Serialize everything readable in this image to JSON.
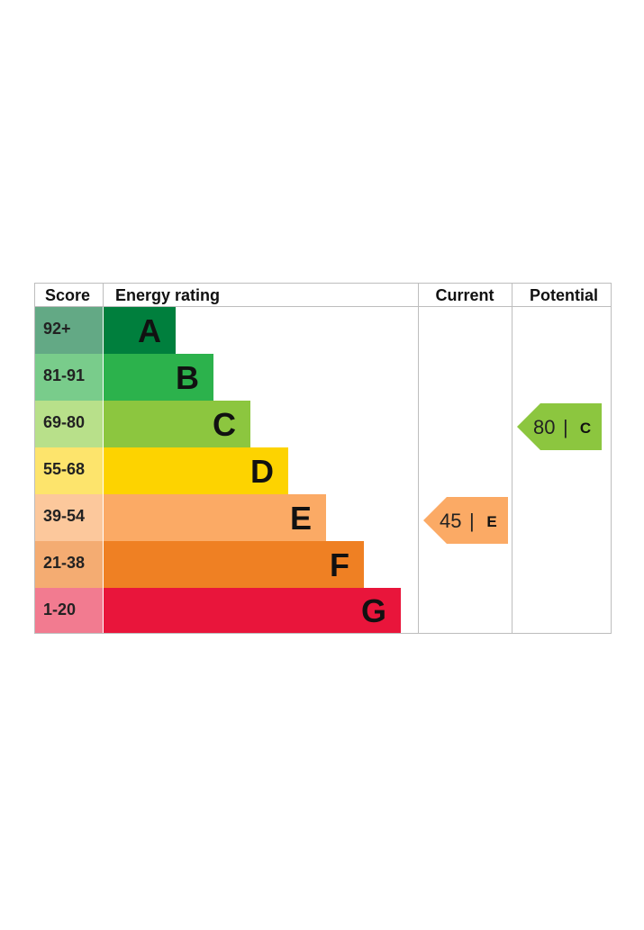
{
  "chart_data": {
    "type": "bar",
    "title": "",
    "headers": {
      "score": "Score",
      "rating": "Energy rating",
      "current": "Current",
      "potential": "Potential"
    },
    "bands": [
      {
        "letter": "A",
        "range": "92+",
        "color": "#007f3d",
        "score_color": "#63a985"
      },
      {
        "letter": "B",
        "range": "81-91",
        "color": "#2cb24c",
        "score_color": "#79cc8b"
      },
      {
        "letter": "C",
        "range": "69-80",
        "color": "#8cc63f",
        "score_color": "#b8e08a"
      },
      {
        "letter": "D",
        "range": "55-68",
        "color": "#fdd300",
        "score_color": "#fde46c"
      },
      {
        "letter": "E",
        "range": "39-54",
        "color": "#fbaa65",
        "score_color": "#fcc89c"
      },
      {
        "letter": "F",
        "range": "21-38",
        "color": "#ef8023",
        "score_color": "#f4ac72"
      },
      {
        "letter": "G",
        "range": "1-20",
        "color": "#e9153b",
        "score_color": "#f27b90"
      }
    ],
    "current": {
      "value": 45,
      "letter": "E",
      "separator": "|",
      "color": "#fbaa65"
    },
    "potential": {
      "value": 80,
      "letter": "C",
      "separator": "|",
      "color": "#8cc63f"
    }
  }
}
